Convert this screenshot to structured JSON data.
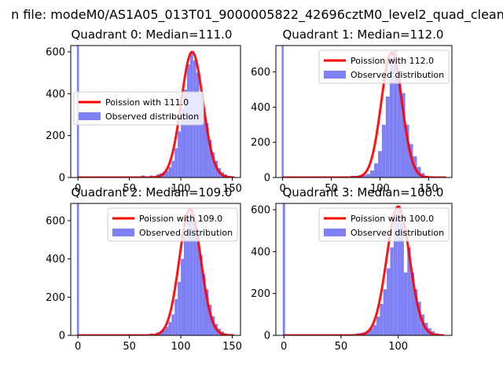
{
  "figure": {
    "suptitle": "n file: modeM0/AS1A05_013T01_9000005822_42696cztM0_level2_quad_clean"
  },
  "colors": {
    "hist": "#8080f5",
    "line": "#ff0000",
    "axis": "#000000"
  },
  "chart_data": [
    {
      "type": "bar",
      "title": "Quadrant 0: Median=111.0",
      "xlim": [
        -7,
        158
      ],
      "ylim": [
        0,
        630
      ],
      "xticks": [
        0,
        50,
        100,
        150
      ],
      "yticks": [
        0,
        200,
        400,
        600
      ],
      "legend_position": "center-left",
      "series": [
        {
          "name": "Observed distribution",
          "type": "histogram",
          "bins": [
            [
              -1,
              1,
              630
            ],
            [
              62,
              65,
              10
            ],
            [
              70,
              73,
              10
            ],
            [
              76,
              79,
              15
            ],
            [
              79,
              82,
              20
            ],
            [
              82,
              85,
              25
            ],
            [
              85,
              88,
              30
            ],
            [
              88,
              91,
              50
            ],
            [
              91,
              94,
              80
            ],
            [
              94,
              97,
              140
            ],
            [
              97,
              100,
              220
            ],
            [
              100,
              103,
              330
            ],
            [
              103,
              106,
              420
            ],
            [
              106,
              109,
              540
            ],
            [
              109,
              112,
              600
            ],
            [
              112,
              115,
              560
            ],
            [
              115,
              118,
              500
            ],
            [
              118,
              121,
              400
            ],
            [
              121,
              124,
              330
            ],
            [
              124,
              127,
              260
            ],
            [
              127,
              130,
              180
            ],
            [
              130,
              133,
              120
            ],
            [
              133,
              136,
              80
            ],
            [
              136,
              139,
              45
            ],
            [
              139,
              142,
              25
            ],
            [
              142,
              145,
              15
            ]
          ]
        },
        {
          "name": "Poission with 111.0",
          "type": "line",
          "mean": 111,
          "peak": 600,
          "x_range": [
            0,
            152
          ]
        }
      ]
    },
    {
      "type": "bar",
      "title": "Quadrant 1: Median=112.0",
      "xlim": [
        -7,
        174
      ],
      "ylim": [
        0,
        750
      ],
      "xticks": [
        0,
        50,
        100,
        150
      ],
      "yticks": [
        0,
        200,
        400,
        600
      ],
      "legend_position": "top-right",
      "series": [
        {
          "name": "Observed distribution",
          "type": "histogram",
          "bins": [
            [
              -1,
              1,
              750
            ],
            [
              70,
              74,
              10
            ],
            [
              74,
              78,
              10
            ],
            [
              78,
              82,
              12
            ],
            [
              82,
              86,
              15
            ],
            [
              86,
              90,
              20
            ],
            [
              90,
              94,
              40
            ],
            [
              94,
              98,
              80
            ],
            [
              98,
              102,
              150
            ],
            [
              102,
              106,
              300
            ],
            [
              106,
              110,
              460
            ],
            [
              110,
              114,
              680
            ],
            [
              114,
              118,
              720
            ],
            [
              118,
              122,
              600
            ],
            [
              122,
              126,
              480
            ],
            [
              126,
              130,
              300
            ],
            [
              130,
              134,
              190
            ],
            [
              134,
              138,
              120
            ],
            [
              138,
              142,
              60
            ],
            [
              142,
              146,
              25
            ],
            [
              146,
              150,
              10
            ]
          ]
        },
        {
          "name": "Poission with 112.0",
          "type": "line",
          "mean": 112,
          "peak": 710,
          "x_range": [
            0,
            168
          ]
        }
      ]
    },
    {
      "type": "bar",
      "title": "Quadrant 2: Median=109.0",
      "xlim": [
        -7,
        158
      ],
      "ylim": [
        0,
        690
      ],
      "xticks": [
        0,
        50,
        100,
        150
      ],
      "yticks": [
        0,
        200,
        400,
        600
      ],
      "legend_position": "top-right",
      "series": [
        {
          "name": "Observed distribution",
          "type": "histogram",
          "bins": [
            [
              -1,
              1,
              690
            ],
            [
              62,
              65,
              5
            ],
            [
              70,
              73,
              10
            ],
            [
              76,
              79,
              15
            ],
            [
              79,
              82,
              20
            ],
            [
              82,
              85,
              30
            ],
            [
              85,
              88,
              45
            ],
            [
              88,
              91,
              70
            ],
            [
              91,
              94,
              110
            ],
            [
              94,
              97,
              190
            ],
            [
              97,
              100,
              280
            ],
            [
              100,
              103,
              400
            ],
            [
              103,
              106,
              510
            ],
            [
              106,
              109,
              620
            ],
            [
              109,
              112,
              660
            ],
            [
              112,
              115,
              600
            ],
            [
              115,
              118,
              520
            ],
            [
              118,
              121,
              420
            ],
            [
              121,
              124,
              320
            ],
            [
              124,
              127,
              240
            ],
            [
              127,
              130,
              160
            ],
            [
              130,
              133,
              100
            ],
            [
              133,
              136,
              60
            ],
            [
              136,
              139,
              35
            ],
            [
              139,
              142,
              20
            ],
            [
              142,
              145,
              10
            ]
          ]
        },
        {
          "name": "Poission with 109.0",
          "type": "line",
          "mean": 109,
          "peak": 660,
          "x_range": [
            0,
            152
          ]
        }
      ]
    },
    {
      "type": "bar",
      "title": "Quadrant 3: Median=100.0",
      "xlim": [
        -7,
        147
      ],
      "ylim": [
        0,
        630
      ],
      "xticks": [
        0,
        50,
        100
      ],
      "yticks": [
        0,
        200,
        400,
        600
      ],
      "legend_position": "top-right",
      "series": [
        {
          "name": "Observed distribution",
          "type": "histogram",
          "bins": [
            [
              -1,
              1,
              630
            ],
            [
              60,
              63,
              5
            ],
            [
              63,
              66,
              10
            ],
            [
              66,
              69,
              12
            ],
            [
              69,
              72,
              15
            ],
            [
              72,
              75,
              22
            ],
            [
              75,
              78,
              35
            ],
            [
              78,
              81,
              50
            ],
            [
              81,
              84,
              90
            ],
            [
              84,
              87,
              150
            ],
            [
              87,
              90,
              220
            ],
            [
              90,
              93,
              320
            ],
            [
              93,
              96,
              420
            ],
            [
              96,
              99,
              560
            ],
            [
              99,
              102,
              620
            ],
            [
              102,
              105,
              540
            ],
            [
              105,
              108,
              300
            ],
            [
              108,
              111,
              420
            ],
            [
              111,
              114,
              300
            ],
            [
              114,
              117,
              220
            ],
            [
              117,
              120,
              160
            ],
            [
              120,
              123,
              100
            ],
            [
              123,
              126,
              60
            ],
            [
              126,
              129,
              35
            ],
            [
              129,
              132,
              20
            ],
            [
              132,
              135,
              10
            ]
          ]
        },
        {
          "name": "Poission with 100.0",
          "type": "line",
          "mean": 100,
          "peak": 615,
          "x_range": [
            0,
            140
          ]
        }
      ]
    }
  ]
}
